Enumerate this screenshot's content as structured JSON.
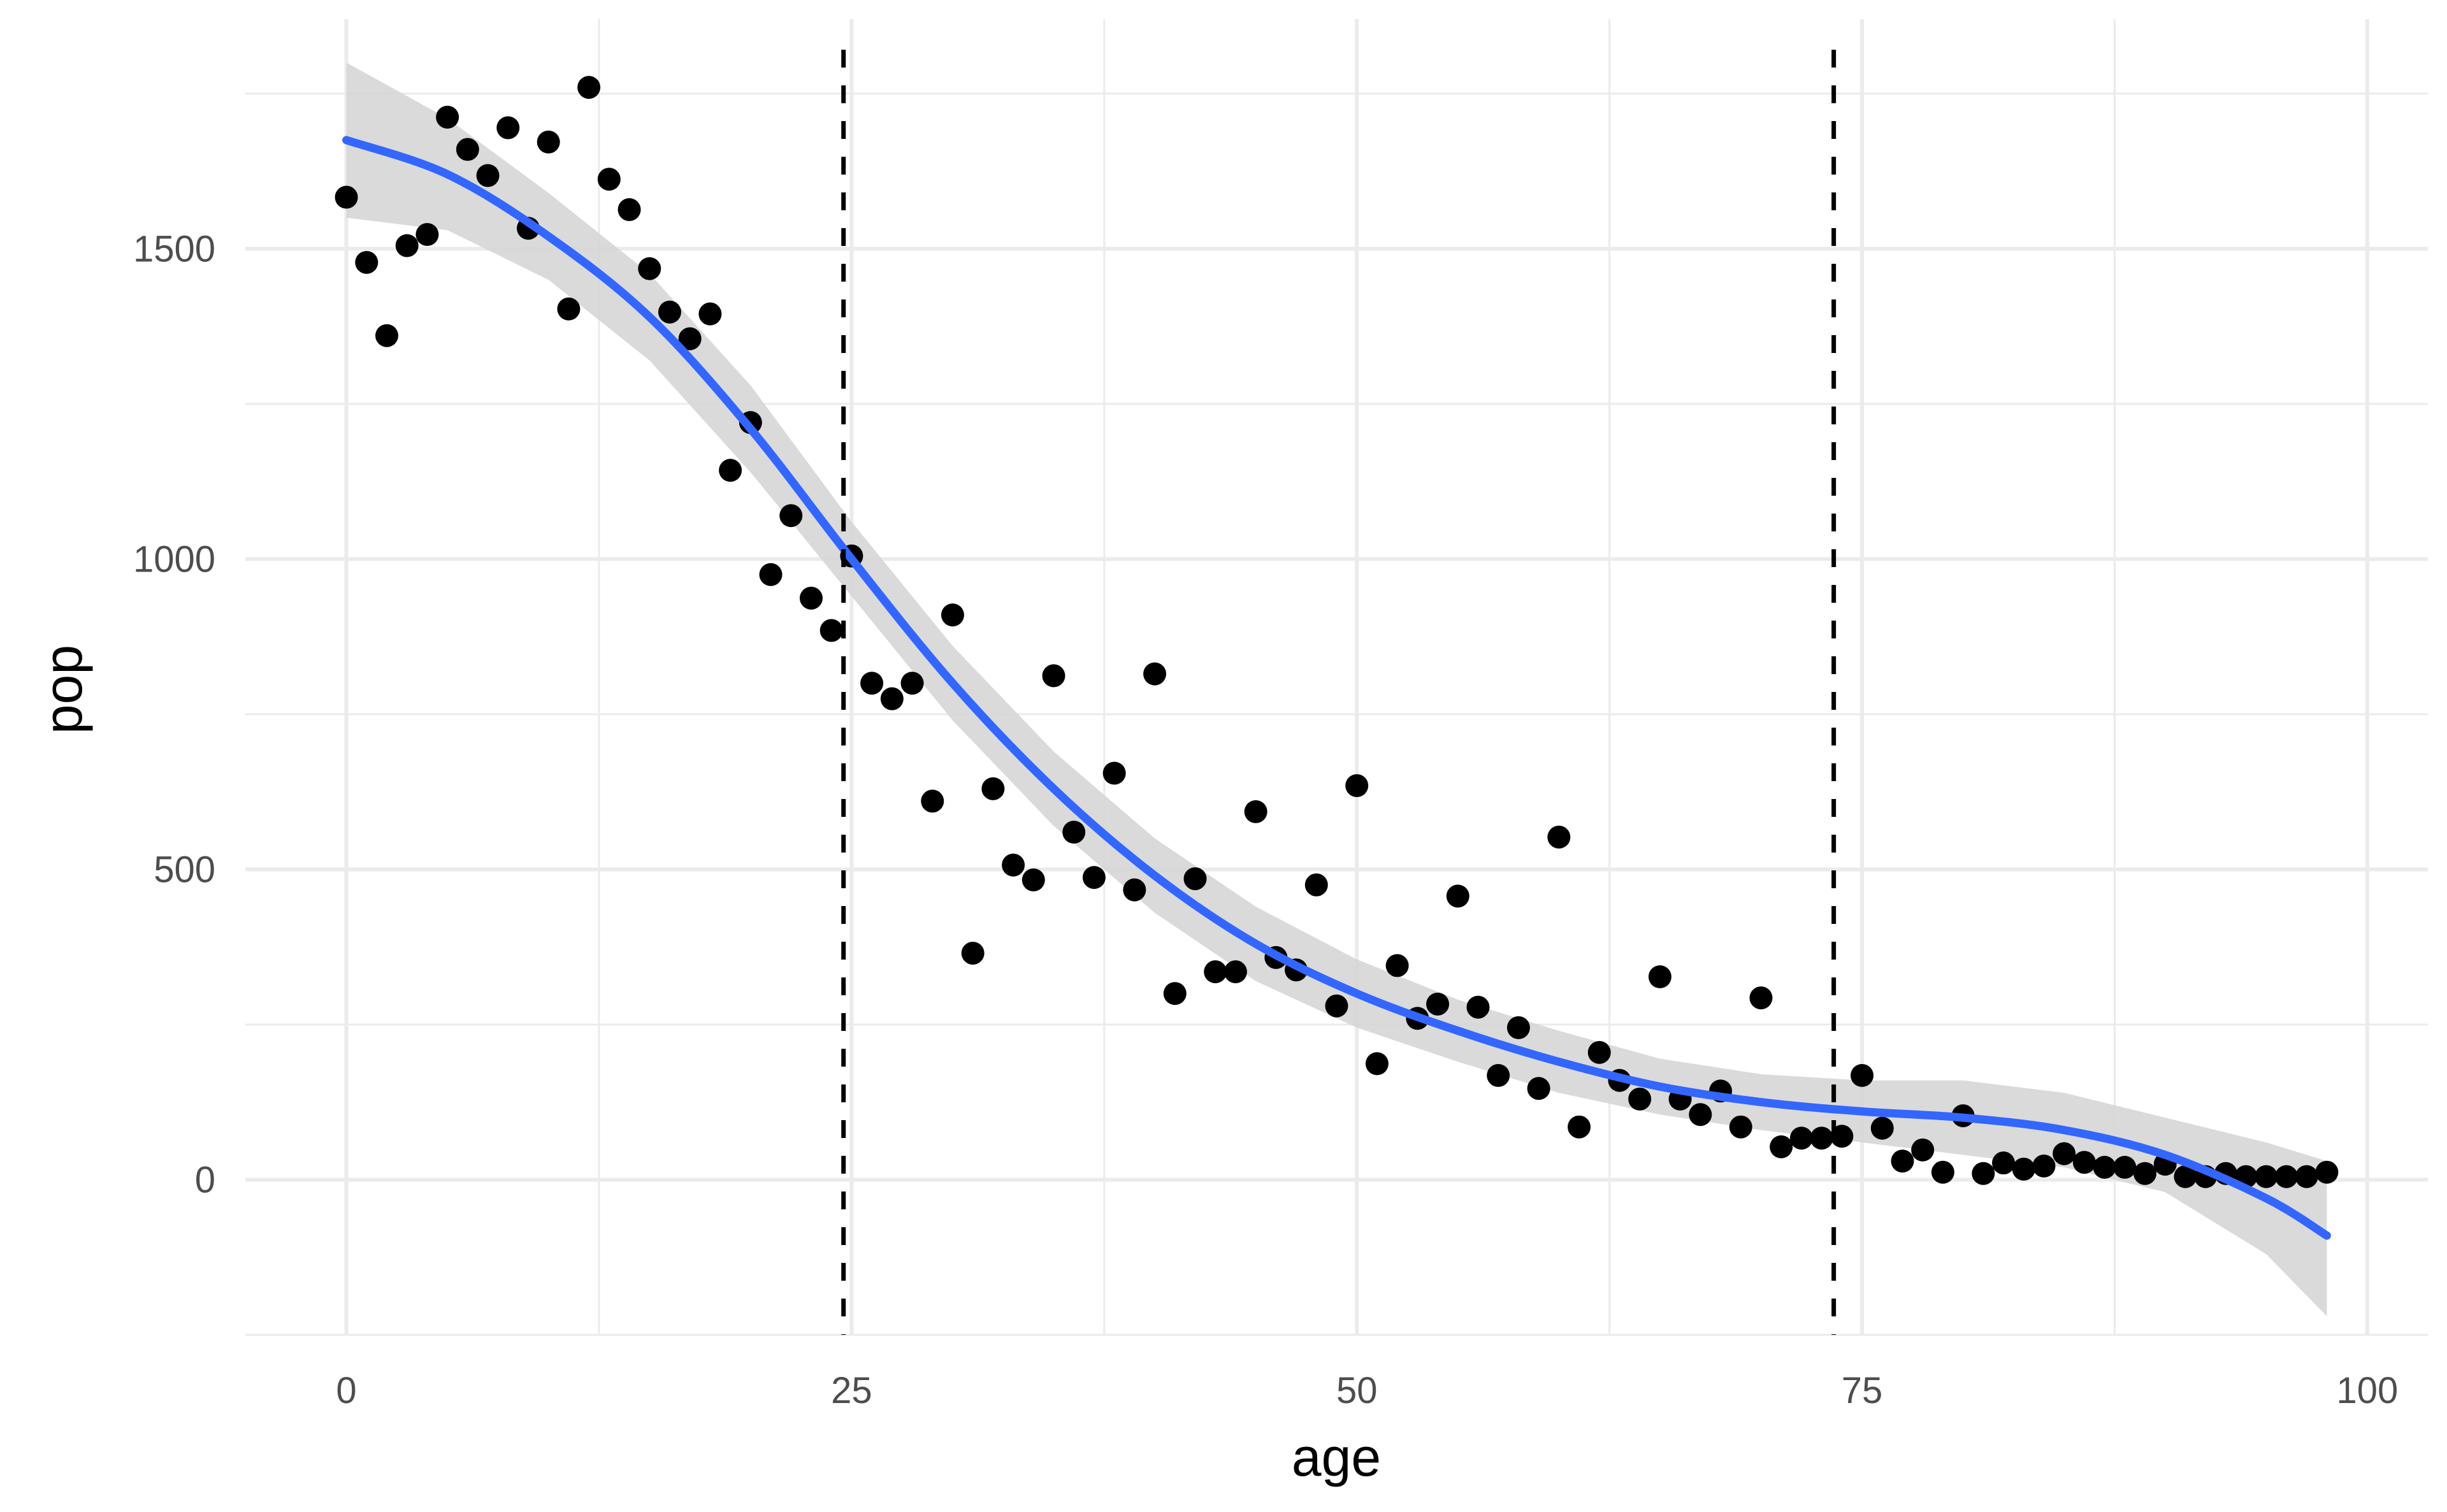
{
  "chart_data": {
    "type": "scatter",
    "xlabel": "age",
    "ylabel": "pop",
    "xlim": [
      -5,
      103
    ],
    "ylim": [
      -250,
      1870
    ],
    "x_ticks": [
      0,
      25,
      50,
      75,
      100
    ],
    "x_tick_labels": [
      "0",
      "25",
      "50",
      "75",
      "100"
    ],
    "y_ticks": [
      0,
      500,
      1000,
      1500
    ],
    "y_tick_labels": [
      "0",
      "500",
      "1000",
      "1500"
    ],
    "grid": true,
    "vlines": [
      24.6,
      73.6
    ],
    "points": {
      "x": [
        0,
        1,
        2,
        3,
        4,
        5,
        6,
        7,
        8,
        9,
        10,
        11,
        12,
        13,
        14,
        15,
        16,
        17,
        18,
        19,
        20,
        21,
        22,
        23,
        24,
        25,
        26,
        27,
        28,
        29,
        30,
        31,
        32,
        33,
        34,
        35,
        36,
        37,
        38,
        39,
        40,
        41,
        42,
        43,
        44,
        45,
        46,
        47,
        48,
        49,
        50,
        51,
        52,
        53,
        54,
        55,
        56,
        57,
        58,
        59,
        60,
        61,
        62,
        63,
        64,
        65,
        66,
        67,
        68,
        69,
        70,
        71,
        72,
        73,
        74,
        75,
        76,
        77,
        78,
        79,
        80,
        81,
        82,
        83,
        84,
        85,
        86,
        87,
        88,
        89,
        90,
        91,
        92,
        93,
        94,
        95,
        96,
        97,
        98
      ],
      "y": [
        1583,
        1478,
        1360,
        1505,
        1523,
        1712,
        1660,
        1618,
        1695,
        1533,
        1672,
        1403,
        1760,
        1612,
        1563,
        1468,
        1398,
        1355,
        1395,
        1143,
        1220,
        975,
        1070,
        937,
        885,
        1005,
        800,
        775,
        800,
        610,
        910,
        365,
        630,
        507,
        483,
        812,
        560,
        487,
        655,
        467,
        815,
        300,
        485,
        335,
        335,
        593,
        358,
        338,
        475,
        280,
        635,
        187,
        345,
        260,
        283,
        457,
        278,
        168,
        245,
        147,
        552,
        85,
        205,
        160,
        130,
        327,
        130,
        105,
        143,
        85,
        293,
        53,
        67,
        67,
        70,
        168,
        83,
        30,
        48,
        12,
        103,
        10,
        27,
        17,
        22,
        42,
        28,
        20,
        20,
        10,
        25,
        5,
        5,
        10,
        5,
        5,
        5,
        5,
        12
      ]
    },
    "smooth_fit": {
      "x": [
        0,
        5,
        10,
        15,
        20,
        25,
        30,
        35,
        40,
        45,
        50,
        55,
        60,
        65,
        70,
        75,
        80,
        85,
        90,
        95,
        98
      ],
      "y": [
        1675,
        1620,
        1520,
        1390,
        1210,
        1000,
        800,
        630,
        490,
        380,
        300,
        240,
        190,
        150,
        125,
        110,
        100,
        80,
        40,
        -30,
        -90
      ],
      "lower": [
        1550,
        1530,
        1450,
        1320,
        1140,
        940,
        740,
        570,
        430,
        320,
        245,
        190,
        140,
        105,
        80,
        60,
        40,
        20,
        -20,
        -120,
        -220
      ],
      "upper": [
        1800,
        1710,
        1590,
        1460,
        1280,
        1060,
        860,
        690,
        550,
        440,
        355,
        290,
        240,
        195,
        170,
        160,
        160,
        140,
        100,
        60,
        30
      ]
    },
    "colors": {
      "points": "#000000",
      "smooth_line": "#3366ff",
      "ribbon": "#d6d6d6",
      "vlines": "#000000",
      "grid": "#ebebeb"
    }
  }
}
